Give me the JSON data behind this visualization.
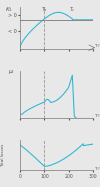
{
  "bg_color": "#e8e8e8",
  "line_color": "#29b6d4",
  "line_width": 0.75,
  "dashed_color": "#999999",
  "axis_color": "#777777",
  "text_color": "#555555",
  "font_size": 3.8,
  "fig_width": 1.0,
  "fig_height": 1.87,
  "dpi": 100,
  "T_b": 100,
  "T_C": 215
}
